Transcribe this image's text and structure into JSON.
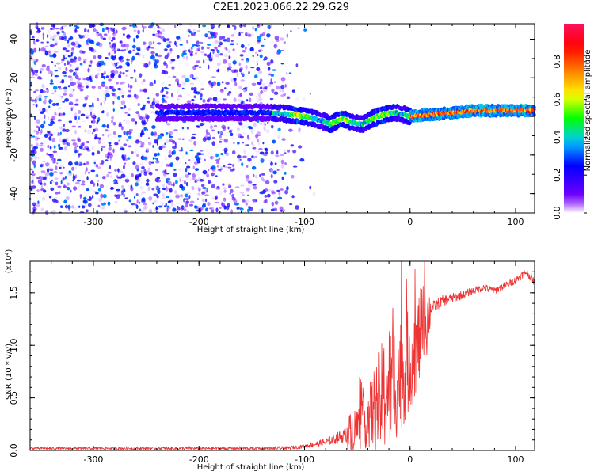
{
  "title": "C2E1.2023.066.22.29.G29",
  "chart_data": [
    {
      "type": "heatmap",
      "xlabel": "Height of straight line (km)",
      "ylabel": "Frequency (Hz)",
      "xlim": [
        -360,
        118
      ],
      "ylim": [
        -50,
        48
      ],
      "x_ticks": [
        -300,
        -200,
        -100,
        0,
        100
      ],
      "y_ticks": [
        -40,
        -20,
        0,
        20,
        40
      ],
      "colorbar": {
        "label": "Normalized spectral amplitude",
        "range": [
          0,
          1
        ],
        "ticks": [
          "0.0",
          "0.2",
          "0.4",
          "0.6",
          "0.8"
        ],
        "colormap": [
          "#ffffff",
          "#7a00ff",
          "#0000ff",
          "#00c8ff",
          "#00ff00",
          "#ffff00",
          "#ff8000",
          "#ff0000",
          "#ff1060"
        ]
      },
      "ridge": {
        "x": [
          -140,
          -120,
          -100,
          -85,
          -75,
          -65,
          -55,
          -45,
          -35,
          -25,
          -15,
          -5,
          0,
          20,
          60,
          90,
          118
        ],
        "y": [
          2,
          1.5,
          0,
          -2,
          -4,
          -1,
          -3,
          -4,
          -1,
          1,
          2,
          1,
          0,
          1,
          3,
          3,
          3
        ],
        "peak_amplitude": 0.9
      },
      "noise_region": {
        "x_range": [
          -360,
          -110
        ],
        "max_amplitude": 0.35
      }
    },
    {
      "type": "line",
      "xlabel": "Height of straight line (km)",
      "ylabel": "SNR (10 * v/v)",
      "y_multiplier": "(x10⁴)",
      "xlim": [
        -360,
        118
      ],
      "ylim": [
        0,
        1.8
      ],
      "x_ticks": [
        -300,
        -200,
        -100,
        0,
        100
      ],
      "y_ticks": [
        "0.0",
        "0.5",
        "1.0",
        "1.5"
      ],
      "color": "#ee3333",
      "envelope": {
        "x": [
          -360,
          -120,
          -100,
          -80,
          -60,
          -40,
          -30,
          -20,
          -10,
          0,
          10,
          20,
          30,
          40,
          50,
          60,
          70,
          80,
          90,
          100,
          110,
          118
        ],
        "y": [
          0.02,
          0.02,
          0.04,
          0.08,
          0.15,
          0.3,
          0.45,
          0.6,
          0.72,
          0.85,
          1.1,
          1.35,
          1.42,
          1.45,
          1.48,
          1.52,
          1.55,
          1.52,
          1.57,
          1.62,
          1.7,
          1.6
        ]
      },
      "noise_amplitude": {
        "x": [
          -360,
          -100,
          -80,
          -60,
          -40,
          -30,
          -20,
          -10,
          0,
          15,
          20,
          60,
          118
        ],
        "y": [
          0.02,
          0.03,
          0.06,
          0.12,
          0.2,
          0.35,
          0.45,
          0.4,
          0.35,
          0.3,
          0.1,
          0.06,
          0.06
        ]
      }
    }
  ]
}
